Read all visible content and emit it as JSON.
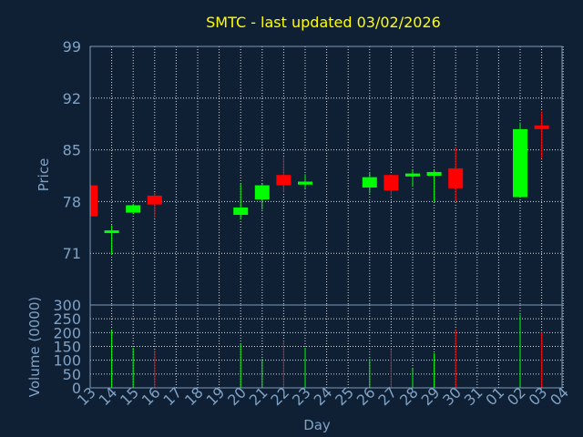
{
  "chart_data": [
    {
      "type": "candlestick",
      "title": "SMTC - last updated 03/02/2026",
      "xlabel": "Day",
      "ylabel": "Price",
      "ylim": [
        64,
        99
      ],
      "yticks": [
        71,
        78,
        85,
        92,
        99
      ],
      "grid": true,
      "colors": {
        "up": "#00ff00",
        "down": "#ff0000",
        "background": "#0f2035",
        "title": "#ffff00",
        "axis": "#7fa2c4"
      },
      "categories": [
        "13",
        "14",
        "15",
        "16",
        "17",
        "18",
        "19",
        "20",
        "21",
        "22",
        "23",
        "24",
        "25",
        "26",
        "27",
        "28",
        "29",
        "30",
        "31",
        "01",
        "02",
        "03",
        "04"
      ],
      "candles": [
        {
          "x": "13",
          "open": 80.2,
          "high": 80.2,
          "low": 76.0,
          "close": 76.0
        },
        {
          "x": "14",
          "open": 73.8,
          "high": 74.8,
          "low": 70.8,
          "close": 74.1
        },
        {
          "x": "15",
          "open": 76.5,
          "high": 77.7,
          "low": 76.3,
          "close": 77.5
        },
        {
          "x": "16",
          "open": 78.8,
          "high": 79.2,
          "low": 75.8,
          "close": 77.6
        },
        {
          "x": "20",
          "open": 76.2,
          "high": 80.4,
          "low": 75.6,
          "close": 77.2
        },
        {
          "x": "21",
          "open": 78.3,
          "high": 80.4,
          "low": 76.9,
          "close": 80.2
        },
        {
          "x": "22",
          "open": 81.6,
          "high": 84.0,
          "low": 79.3,
          "close": 80.2
        },
        {
          "x": "23",
          "open": 80.3,
          "high": 81.7,
          "low": 79.8,
          "close": 80.7
        },
        {
          "x": "26",
          "open": 79.9,
          "high": 82.0,
          "low": 79.1,
          "close": 81.3
        },
        {
          "x": "27",
          "open": 81.6,
          "high": 81.6,
          "low": 78.8,
          "close": 79.5
        },
        {
          "x": "28",
          "open": 81.4,
          "high": 82.3,
          "low": 80.0,
          "close": 81.8
        },
        {
          "x": "29",
          "open": 81.5,
          "high": 82.3,
          "low": 78.0,
          "close": 82.0
        },
        {
          "x": "30",
          "open": 82.5,
          "high": 85.4,
          "low": 78.0,
          "close": 79.8
        },
        {
          "x": "02",
          "open": 78.6,
          "high": 88.7,
          "low": 78.6,
          "close": 87.8
        },
        {
          "x": "03",
          "open": 88.3,
          "high": 90.2,
          "low": 83.8,
          "close": 87.8
        }
      ]
    },
    {
      "type": "bar",
      "xlabel": "Day",
      "ylabel": "Volume (0000)",
      "ylim": [
        0,
        300
      ],
      "yticks": [
        0,
        50,
        100,
        150,
        200,
        250,
        300
      ],
      "grid": true,
      "categories": [
        "13",
        "14",
        "15",
        "16",
        "17",
        "18",
        "19",
        "20",
        "21",
        "22",
        "23",
        "24",
        "25",
        "26",
        "27",
        "28",
        "29",
        "30",
        "31",
        "01",
        "02",
        "03",
        "04"
      ],
      "bars": [
        {
          "x": "14",
          "value": 210,
          "direction": "up"
        },
        {
          "x": "15",
          "value": 145,
          "direction": "up"
        },
        {
          "x": "16",
          "value": 135,
          "direction": "down"
        },
        {
          "x": "20",
          "value": 160,
          "direction": "up"
        },
        {
          "x": "21",
          "value": 105,
          "direction": "up"
        },
        {
          "x": "22",
          "value": 170,
          "direction": "down"
        },
        {
          "x": "23",
          "value": 145,
          "direction": "up"
        },
        {
          "x": "26",
          "value": 105,
          "direction": "up"
        },
        {
          "x": "27",
          "value": 140,
          "direction": "down"
        },
        {
          "x": "28",
          "value": 70,
          "direction": "up"
        },
        {
          "x": "29",
          "value": 125,
          "direction": "up"
        },
        {
          "x": "30",
          "value": 210,
          "direction": "down"
        },
        {
          "x": "02",
          "value": 265,
          "direction": "up"
        },
        {
          "x": "03",
          "value": 200,
          "direction": "down"
        }
      ]
    }
  ]
}
